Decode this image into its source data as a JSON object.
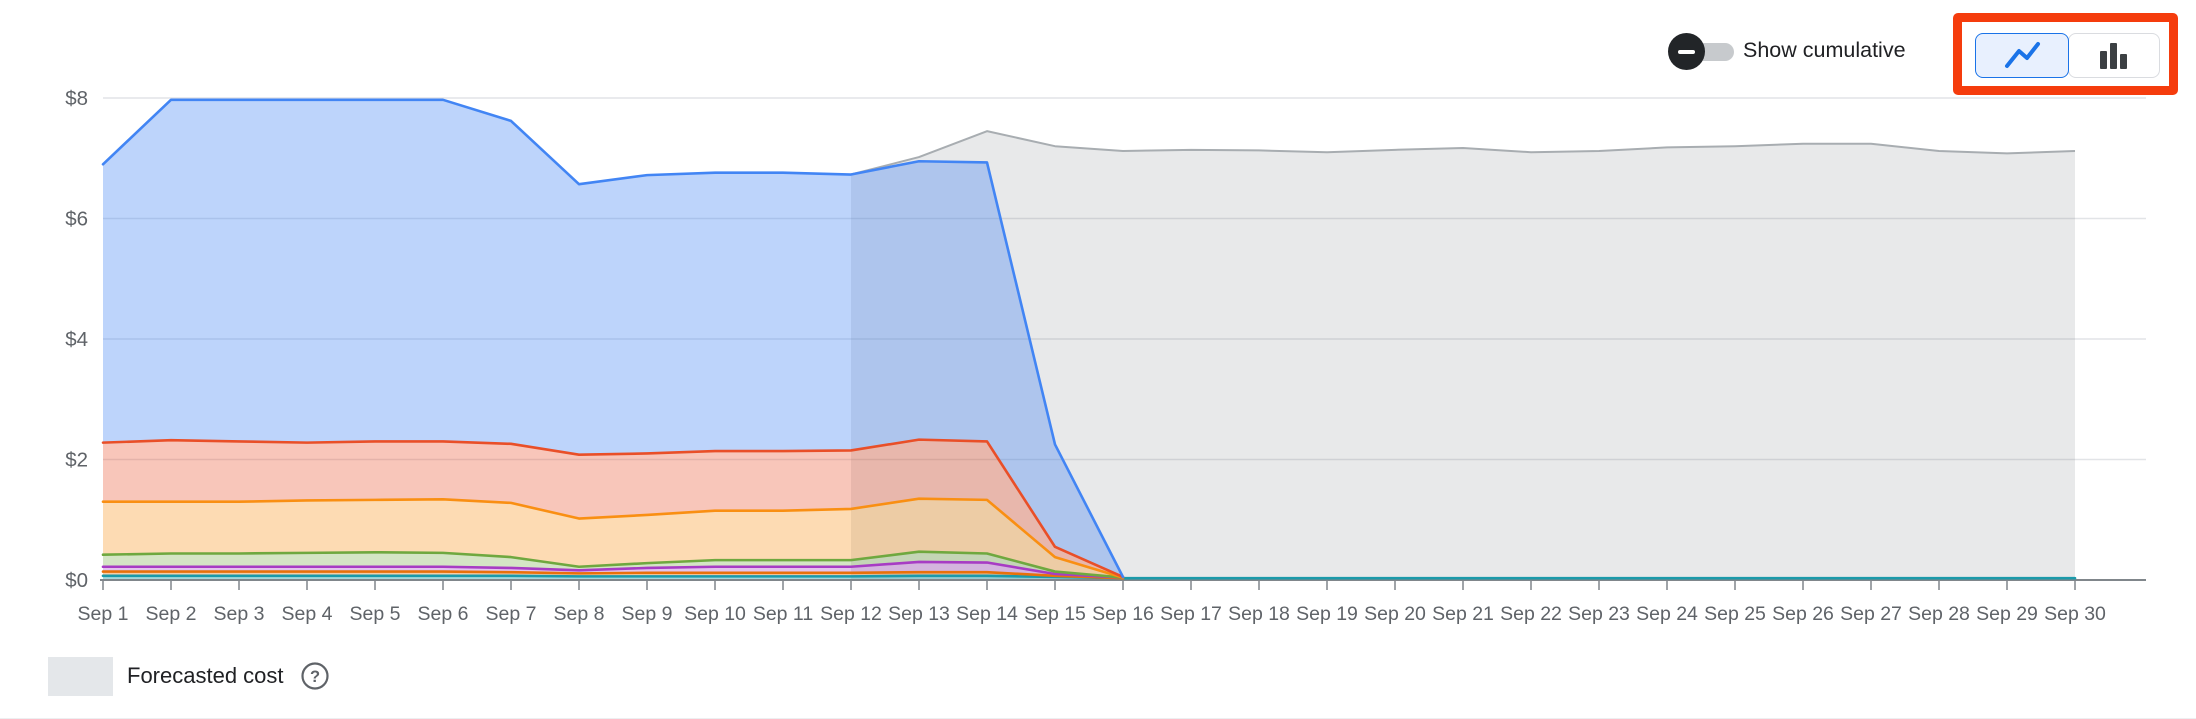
{
  "controls": {
    "show_cumulative_label": "Show cumulative",
    "toggle_state": "off",
    "chart_type_selected": "line",
    "annotation_color": "#f53c0d",
    "selected_button_color": "#1a73e8"
  },
  "legend": {
    "label": "Forecasted cost",
    "swatch_color": "#e4e7ea",
    "help_glyph": "?"
  },
  "chart_data": {
    "type": "area",
    "stacked": true,
    "grid": true,
    "ylim": [
      0,
      8
    ],
    "y_ticks": [
      {
        "label": "$0",
        "value": 0
      },
      {
        "label": "$2",
        "value": 2
      },
      {
        "label": "$4",
        "value": 4
      },
      {
        "label": "$6",
        "value": 6
      },
      {
        "label": "$8",
        "value": 8
      }
    ],
    "x_labels": [
      "Sep 1",
      "Sep 2",
      "Sep 3",
      "Sep 4",
      "Sep 5",
      "Sep 6",
      "Sep 7",
      "Sep 8",
      "Sep 9",
      "Sep 10",
      "Sep 11",
      "Sep 12",
      "Sep 13",
      "Sep 14",
      "Sep 15",
      "Sep 16",
      "Sep 17",
      "Sep 18",
      "Sep 19",
      "Sep 20",
      "Sep 21",
      "Sep 22",
      "Sep 23",
      "Sep 24",
      "Sep 25",
      "Sep 26",
      "Sep 27",
      "Sep 28",
      "Sep 29",
      "Sep 30"
    ],
    "series": [
      {
        "name": "teal",
        "color": "#1b9aaa",
        "fill": "rgba(27,154,170,0.40)",
        "values": [
          0.07,
          0.07,
          0.07,
          0.07,
          0.07,
          0.07,
          0.07,
          0.06,
          0.06,
          0.06,
          0.06,
          0.06,
          0.07,
          0.07,
          0.05,
          0.03,
          0.03,
          0.03,
          0.03,
          0.03,
          0.03,
          0.03,
          0.03,
          0.03,
          0.03,
          0.03,
          0.03,
          0.03,
          0.03,
          0.03
        ]
      },
      {
        "name": "deep-orange",
        "color": "#e8710a",
        "fill": "rgba(232,113,10,0.35)",
        "values": [
          0.07,
          0.07,
          0.07,
          0.07,
          0.07,
          0.07,
          0.06,
          0.05,
          0.06,
          0.06,
          0.06,
          0.06,
          0.06,
          0.06,
          0.02,
          0.0
        ]
      },
      {
        "name": "purple",
        "color": "#a73cc4",
        "fill": "rgba(167,60,196,0.30)",
        "values": [
          0.08,
          0.08,
          0.08,
          0.08,
          0.08,
          0.08,
          0.07,
          0.05,
          0.08,
          0.1,
          0.1,
          0.1,
          0.17,
          0.16,
          0.03,
          0.01
        ]
      },
      {
        "name": "green",
        "color": "#6fa83f",
        "fill": "rgba(111,168,63,0.30)",
        "values": [
          0.2,
          0.22,
          0.22,
          0.23,
          0.24,
          0.23,
          0.18,
          0.06,
          0.08,
          0.11,
          0.11,
          0.11,
          0.17,
          0.15,
          0.04,
          0.0
        ]
      },
      {
        "name": "orange",
        "color": "#f98f13",
        "fill": "rgba(249,143,19,0.32)",
        "values": [
          0.88,
          0.86,
          0.86,
          0.87,
          0.87,
          0.89,
          0.9,
          0.8,
          0.8,
          0.82,
          0.82,
          0.85,
          0.88,
          0.89,
          0.24,
          0.0
        ]
      },
      {
        "name": "red",
        "color": "#e94f28",
        "fill": "rgba(233,79,40,0.32)",
        "values": [
          0.98,
          1.02,
          1.0,
          0.96,
          0.97,
          0.96,
          0.98,
          1.06,
          1.02,
          0.99,
          0.99,
          0.97,
          0.98,
          0.97,
          0.17,
          0.01
        ]
      },
      {
        "name": "blue",
        "color": "#4285f4",
        "fill": "rgba(66,133,244,0.35)",
        "values": [
          4.62,
          5.65,
          5.67,
          5.69,
          5.67,
          5.67,
          5.36,
          4.49,
          4.62,
          4.62,
          4.62,
          4.58,
          4.62,
          4.63,
          1.7,
          0.0
        ]
      }
    ],
    "forecast": {
      "name": "Forecasted cost",
      "color": "#a8adb1",
      "fill": "rgba(95,99,104,0.14)",
      "start_day": 12,
      "values": [
        6.73,
        7.02,
        7.45,
        7.2,
        7.12,
        7.14,
        7.13,
        7.1,
        7.14,
        7.17,
        7.1,
        7.12,
        7.18,
        7.2,
        7.24,
        7.24,
        7.12,
        7.08,
        7.12
      ]
    }
  }
}
